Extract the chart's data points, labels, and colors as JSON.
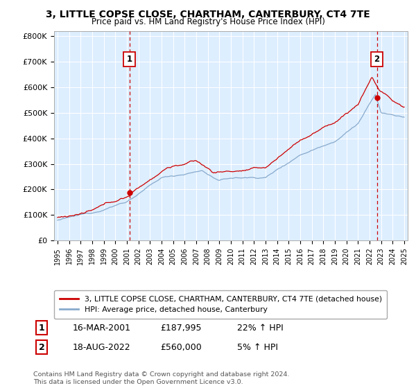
{
  "title": "3, LITTLE COPSE CLOSE, CHARTHAM, CANTERBURY, CT4 7TE",
  "subtitle": "Price paid vs. HM Land Registry's House Price Index (HPI)",
  "ylim": [
    0,
    820000
  ],
  "yticks": [
    0,
    100000,
    200000,
    300000,
    400000,
    500000,
    600000,
    700000,
    800000
  ],
  "ytick_labels": [
    "£0",
    "£100K",
    "£200K",
    "£300K",
    "£400K",
    "£500K",
    "£600K",
    "£700K",
    "£800K"
  ],
  "sale1_date_num": 2001.21,
  "sale1_price": 187995,
  "sale1_label": "1",
  "sale1_date_str": "16-MAR-2001",
  "sale1_pct": "22% ↑ HPI",
  "sale2_date_num": 2022.63,
  "sale2_price": 560000,
  "sale2_label": "2",
  "sale2_date_str": "18-AUG-2022",
  "sale2_pct": "5% ↑ HPI",
  "line_color_red": "#cc0000",
  "line_color_blue": "#88aacc",
  "vline_color": "#cc0000",
  "grid_color": "#cccccc",
  "plot_bg_color": "#ddeeff",
  "legend_line1": "3, LITTLE COPSE CLOSE, CHARTHAM, CANTERBURY, CT4 7TE (detached house)",
  "legend_line2": "HPI: Average price, detached house, Canterbury",
  "footer": "Contains HM Land Registry data © Crown copyright and database right 2024.\nThis data is licensed under the Open Government Licence v3.0.",
  "xmin": 1994.7,
  "xmax": 2025.3
}
